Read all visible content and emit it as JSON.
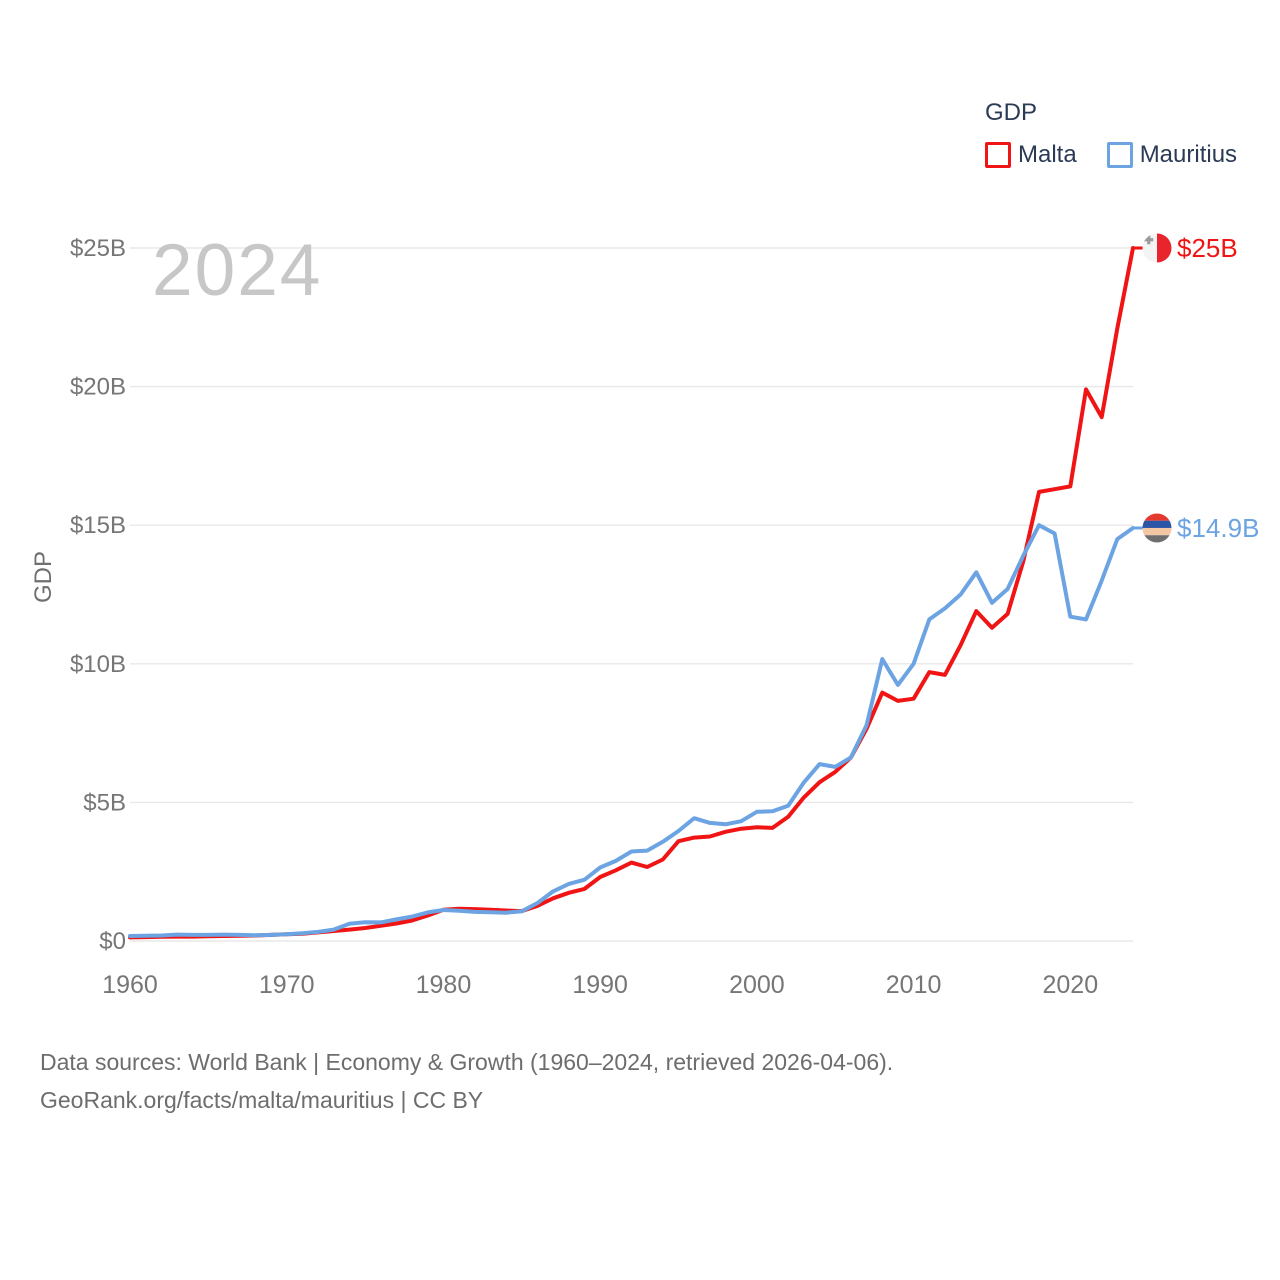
{
  "watermark": {
    "text": "2024"
  },
  "legend": {
    "title": "GDP"
  },
  "footer": {
    "line1": "Data sources: World Bank | Economy & Growth (1960–2024, retrieved 2026-04-06).",
    "line2": "GeoRank.org/facts/malta/mauritius | CC BY"
  },
  "chart_data": {
    "type": "line",
    "title": "GDP",
    "xlabel": "",
    "ylabel": "GDP",
    "xlim": [
      1960,
      2024
    ],
    "ylim": [
      0,
      25
    ],
    "grid": "horizontal",
    "legend_position": "top-right",
    "x_ticks": [
      1960,
      1970,
      1980,
      1990,
      2000,
      2010,
      2020
    ],
    "y_ticks": [
      {
        "value": 0,
        "label": "$0"
      },
      {
        "value": 5,
        "label": "$5B"
      },
      {
        "value": 10,
        "label": "$10B"
      },
      {
        "value": 15,
        "label": "$15B"
      },
      {
        "value": 20,
        "label": "$20B"
      },
      {
        "value": 25,
        "label": "$25B"
      }
    ],
    "x": [
      1960,
      1961,
      1962,
      1963,
      1964,
      1965,
      1966,
      1967,
      1968,
      1969,
      1970,
      1971,
      1972,
      1973,
      1974,
      1975,
      1976,
      1977,
      1978,
      1979,
      1980,
      1981,
      1982,
      1983,
      1984,
      1985,
      1986,
      1987,
      1988,
      1989,
      1990,
      1991,
      1992,
      1993,
      1994,
      1995,
      1996,
      1997,
      1998,
      1999,
      2000,
      2001,
      2002,
      2003,
      2004,
      2005,
      2006,
      2007,
      2008,
      2009,
      2010,
      2011,
      2012,
      2013,
      2014,
      2015,
      2016,
      2017,
      2018,
      2019,
      2020,
      2021,
      2022,
      2023,
      2024
    ],
    "series": [
      {
        "name": "Malta",
        "color": "#f01414",
        "flag": "malta",
        "end_label": "$25B",
        "values": [
          0.13,
          0.14,
          0.15,
          0.16,
          0.16,
          0.17,
          0.18,
          0.19,
          0.2,
          0.22,
          0.24,
          0.26,
          0.31,
          0.36,
          0.41,
          0.47,
          0.55,
          0.63,
          0.74,
          0.92,
          1.13,
          1.16,
          1.15,
          1.13,
          1.1,
          1.08,
          1.27,
          1.54,
          1.74,
          1.88,
          2.31,
          2.55,
          2.83,
          2.67,
          2.94,
          3.6,
          3.73,
          3.77,
          3.94,
          4.05,
          4.1,
          4.08,
          4.48,
          5.18,
          5.73,
          6.1,
          6.62,
          7.66,
          8.96,
          8.66,
          8.74,
          9.7,
          9.6,
          10.67,
          11.9,
          11.3,
          11.8,
          13.7,
          16.2,
          16.3,
          16.4,
          19.9,
          18.9,
          22.1,
          25.0
        ]
      },
      {
        "name": "Mauritius",
        "color": "#6ba3e3",
        "flag": "mauritius",
        "end_label": "$14.9B",
        "values": [
          0.18,
          0.19,
          0.2,
          0.23,
          0.22,
          0.22,
          0.23,
          0.22,
          0.21,
          0.22,
          0.24,
          0.28,
          0.33,
          0.41,
          0.62,
          0.68,
          0.67,
          0.78,
          0.88,
          1.03,
          1.12,
          1.09,
          1.05,
          1.04,
          1.02,
          1.07,
          1.37,
          1.79,
          2.06,
          2.21,
          2.65,
          2.89,
          3.23,
          3.26,
          3.58,
          3.97,
          4.43,
          4.26,
          4.21,
          4.32,
          4.66,
          4.68,
          4.88,
          5.72,
          6.38,
          6.28,
          6.62,
          7.79,
          10.17,
          9.24,
          10.0,
          11.6,
          12.0,
          12.5,
          13.3,
          12.2,
          12.7,
          13.9,
          15.0,
          14.7,
          11.7,
          11.6,
          13.0,
          14.5,
          14.9
        ]
      }
    ],
    "style": {
      "gridline_color": "#e8e8e8",
      "tick_color": "#767676",
      "malta_flag": {
        "left": "#f4f4f4",
        "right": "#e8252c",
        "cross": "#9b9b9b"
      },
      "mauritius_flag": {
        "stripes": [
          "#e4392e",
          "#2b55a7",
          "#f3c6a4",
          "#6e6e6e"
        ]
      }
    }
  }
}
